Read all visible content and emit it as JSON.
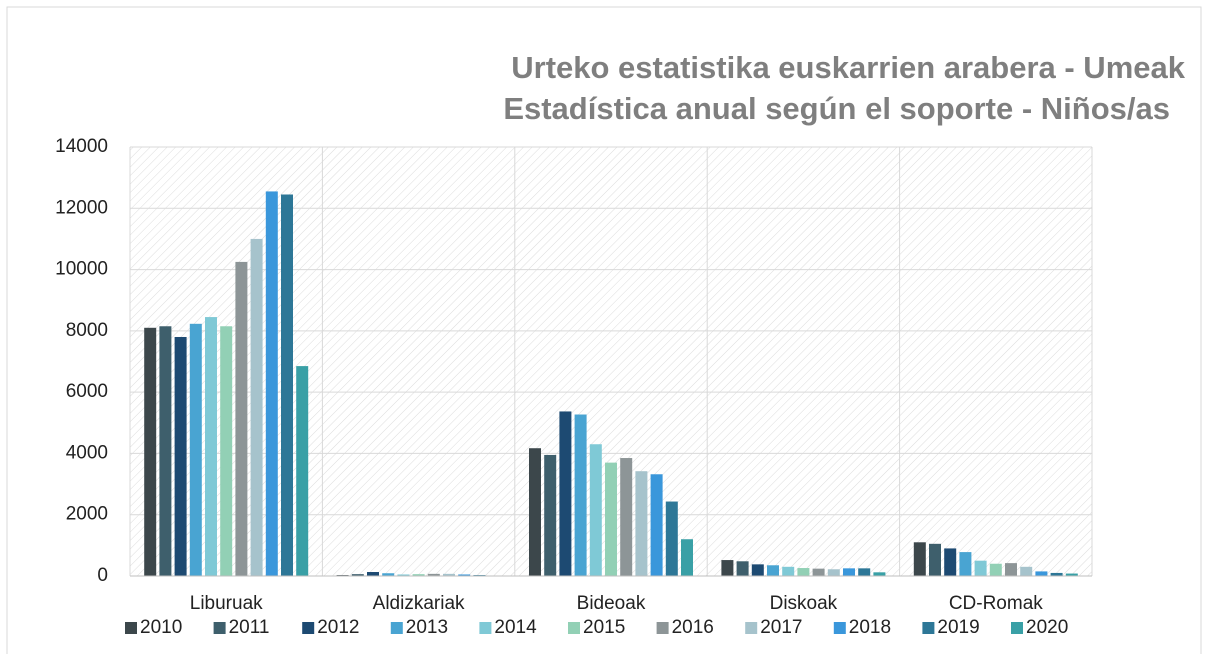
{
  "chart_data": {
    "type": "bar",
    "title": "Urteko estatistika euskarrien arabera - Umeak",
    "subtitle": "Estadística anual según el soporte - Niños/as",
    "categories": [
      "Liburuak",
      "Aldizkariak",
      "Bideoak",
      "Diskoak",
      "CD-Romak"
    ],
    "series": [
      {
        "name": "2010",
        "color": "#3c474b",
        "values": [
          8100,
          30,
          4170,
          520,
          1100
        ]
      },
      {
        "name": "2011",
        "color": "#3e5f6c",
        "values": [
          8150,
          60,
          3950,
          480,
          1050
        ]
      },
      {
        "name": "2012",
        "color": "#1d4a72",
        "values": [
          7800,
          130,
          5370,
          380,
          900
        ]
      },
      {
        "name": "2013",
        "color": "#49a4d2",
        "values": [
          8230,
          90,
          5270,
          350,
          780
        ]
      },
      {
        "name": "2014",
        "color": "#7fc9d6",
        "values": [
          8450,
          50,
          4300,
          300,
          500
        ]
      },
      {
        "name": "2015",
        "color": "#92d0b5",
        "values": [
          8150,
          60,
          3700,
          260,
          400
        ]
      },
      {
        "name": "2016",
        "color": "#8d9597",
        "values": [
          10250,
          70,
          3850,
          240,
          420
        ]
      },
      {
        "name": "2017",
        "color": "#a6c3cc",
        "values": [
          11000,
          70,
          3420,
          220,
          300
        ]
      },
      {
        "name": "2018",
        "color": "#3a97db",
        "values": [
          12550,
          50,
          3320,
          250,
          150
        ]
      },
      {
        "name": "2019",
        "color": "#2d7797",
        "values": [
          12450,
          30,
          2430,
          250,
          100
        ]
      },
      {
        "name": "2020",
        "color": "#39a0a6",
        "values": [
          6850,
          10,
          1200,
          120,
          80
        ]
      }
    ],
    "ylim": [
      0,
      14000
    ],
    "yticks": [
      0,
      2000,
      4000,
      6000,
      8000,
      10000,
      12000,
      14000
    ],
    "grid": true,
    "legend": "bottom"
  }
}
